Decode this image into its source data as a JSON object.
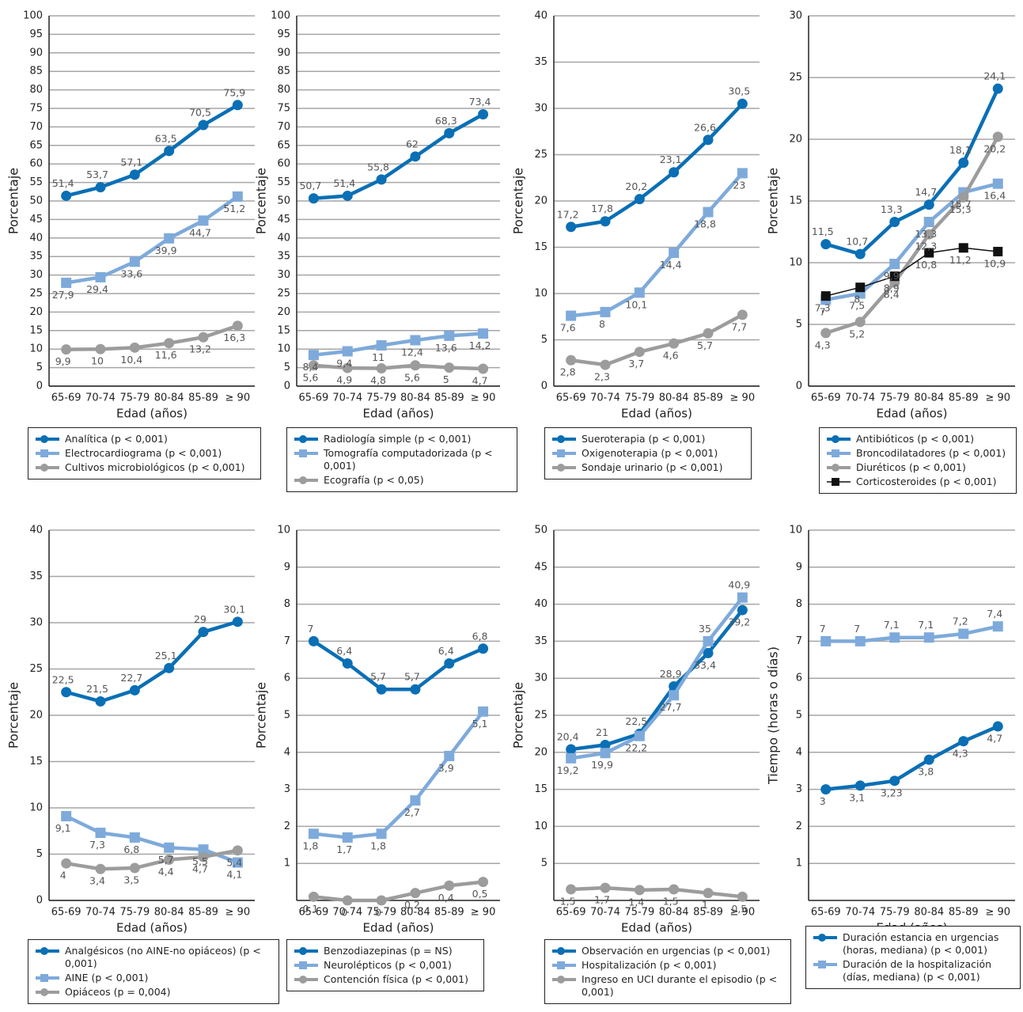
{
  "chart_data": [
    {
      "type": "line",
      "ylabel": "Porcentaje",
      "xlabel": "Edad (años)",
      "categories": [
        "65-69",
        "70-74",
        "75-79",
        "80-84",
        "85-89",
        "≥ 90"
      ],
      "ylim": [
        0,
        100
      ],
      "yticks": [
        0,
        5,
        10,
        15,
        20,
        25,
        30,
        35,
        40,
        45,
        50,
        55,
        60,
        65,
        70,
        75,
        80,
        85,
        90,
        95,
        100
      ],
      "grid": true,
      "series": [
        {
          "name": "Analítica (p < 0,001)",
          "color": "#0a6fb5",
          "marker": "circle",
          "values": [
            51.4,
            53.7,
            57.1,
            63.5,
            70.5,
            75.9
          ],
          "value_labels": [
            "51,4",
            "53,7",
            "57,1",
            "63,5",
            "70,5",
            "75,9"
          ]
        },
        {
          "name": "Electrocardiograma (p < 0,001)",
          "color": "#7eaadb",
          "marker": "square",
          "values": [
            27.9,
            29.4,
            33.6,
            39.9,
            44.7,
            51.2
          ],
          "value_labels": [
            "27,9",
            "29,4",
            "33,6",
            "39,9",
            "44,7",
            "51,2"
          ]
        },
        {
          "name": "Cultivos microbiológicos (p < 0,001)",
          "color": "#9c9c9c",
          "marker": "circle",
          "values": [
            9.9,
            10,
            10.4,
            11.6,
            13.2,
            16.3
          ],
          "value_labels": [
            "9,9",
            "10",
            "10,4",
            "11,6",
            "13,2",
            "16,3"
          ]
        }
      ]
    },
    {
      "type": "line",
      "ylabel": "Porcentaje",
      "xlabel": "Edad (años)",
      "categories": [
        "65-69",
        "70-74",
        "75-79",
        "80-84",
        "85-89",
        "≥ 90"
      ],
      "ylim": [
        0,
        100
      ],
      "yticks": [
        0,
        5,
        10,
        15,
        20,
        25,
        30,
        35,
        40,
        45,
        50,
        55,
        60,
        65,
        70,
        75,
        80,
        85,
        90,
        95,
        100
      ],
      "grid": true,
      "series": [
        {
          "name": "Radiología simple (p < 0,001)",
          "color": "#0a6fb5",
          "marker": "circle",
          "values": [
            50.7,
            51.4,
            55.8,
            62,
            68.3,
            73.4
          ],
          "value_labels": [
            "50,7",
            "51,4",
            "55,8",
            "62",
            "68,3",
            "73,4"
          ]
        },
        {
          "name": "Tomografía computadorizada (p < 0,001)",
          "color": "#7eaadb",
          "marker": "square",
          "values": [
            8.4,
            9.4,
            11,
            12.4,
            13.6,
            14.2
          ],
          "value_labels": [
            "8,4",
            "9,4",
            "11",
            "12,4",
            "13,6",
            "14,2"
          ]
        },
        {
          "name": "Ecografía (p < 0,05)",
          "color": "#9c9c9c",
          "marker": "circle",
          "values": [
            5.6,
            4.9,
            4.8,
            5.6,
            5,
            4.7
          ],
          "value_labels": [
            "5,6",
            "4,9",
            "4,8",
            "5,6",
            "5",
            "4,7"
          ]
        }
      ]
    },
    {
      "type": "line",
      "ylabel": "Porcentaje",
      "xlabel": "Edad (años)",
      "categories": [
        "65-69",
        "70-74",
        "75-79",
        "80-84",
        "85-89",
        "≥ 90"
      ],
      "ylim": [
        0,
        40
      ],
      "yticks": [
        0,
        5,
        10,
        15,
        20,
        25,
        30,
        35,
        40
      ],
      "grid": true,
      "series": [
        {
          "name": "Sueroterapia (p < 0,001)",
          "color": "#0a6fb5",
          "marker": "circle",
          "values": [
            17.2,
            17.8,
            20.2,
            23.1,
            26.6,
            30.5
          ],
          "value_labels": [
            "17,2",
            "17,8",
            "20,2",
            "23,1",
            "26,6",
            "30,5"
          ]
        },
        {
          "name": "Oxigenoterapia (p < 0,001)",
          "color": "#7eaadb",
          "marker": "square",
          "values": [
            7.6,
            8,
            10.1,
            14.4,
            18.8,
            23
          ],
          "value_labels": [
            "7,6",
            "8",
            "10,1",
            "14,4",
            "18,8",
            "23"
          ]
        },
        {
          "name": "Sondaje urinario (p < 0,001)",
          "color": "#9c9c9c",
          "marker": "circle",
          "values": [
            2.8,
            2.3,
            3.7,
            4.6,
            5.7,
            7.7
          ],
          "value_labels": [
            "2,8",
            "2,3",
            "3,7",
            "4,6",
            "5,7",
            "7,7"
          ]
        }
      ]
    },
    {
      "type": "line",
      "ylabel": "Porcentaje",
      "xlabel": "Edad (años)",
      "categories": [
        "65-69",
        "70-74",
        "75-79",
        "80-84",
        "85-89",
        "≥ 90"
      ],
      "ylim": [
        0,
        30
      ],
      "yticks": [
        0,
        5,
        10,
        15,
        20,
        25,
        30
      ],
      "grid": true,
      "series": [
        {
          "name": "Antibióticos (p < 0,001)",
          "color": "#0a6fb5",
          "marker": "circle",
          "values": [
            11.5,
            10.7,
            13.3,
            14.7,
            18.1,
            24.1
          ],
          "value_labels": [
            "11,5",
            "10,7",
            "13,3",
            "14,7",
            "18,1",
            "24,1"
          ]
        },
        {
          "name": "Broncodilatadores (p < 0,001)",
          "color": "#7eaadb",
          "marker": "square",
          "values": [
            7,
            7.5,
            9.9,
            13.3,
            15.7,
            16.4
          ],
          "value_labels": [
            "7",
            "7,5",
            "9,9",
            "13,3",
            "15,7",
            "16,4"
          ]
        },
        {
          "name": "Diuréticos (p < 0,001)",
          "color": "#9c9c9c",
          "marker": "circle",
          "values": [
            4.3,
            5.2,
            8.4,
            12.3,
            15.3,
            20.2
          ],
          "value_labels": [
            "4,3",
            "5,2",
            "8,4",
            "12,3",
            "15,3",
            "20,2"
          ]
        },
        {
          "name": "Corticosteroides (p < 0,001)",
          "color": "#111111",
          "marker": "square",
          "values": [
            7.3,
            8,
            8.9,
            10.8,
            11.2,
            10.9
          ],
          "value_labels": [
            "7,3",
            "8",
            "8,9",
            "10,8",
            "11,2",
            "10,9"
          ]
        }
      ]
    },
    {
      "type": "line",
      "ylabel": "Porcentaje",
      "xlabel": "Edad (años)",
      "categories": [
        "65-69",
        "70-74",
        "75-79",
        "80-84",
        "85-89",
        "≥ 90"
      ],
      "ylim": [
        0,
        40
      ],
      "yticks": [
        0,
        5,
        10,
        15,
        20,
        25,
        30,
        35,
        40
      ],
      "grid": true,
      "series": [
        {
          "name": "Analgésicos (no AINE-no opiáceos) (p < 0,001)",
          "color": "#0a6fb5",
          "marker": "circle",
          "values": [
            22.5,
            21.5,
            22.7,
            25.1,
            29,
            30.1
          ],
          "value_labels": [
            "22,5",
            "21,5",
            "22,7",
            "25,1",
            "29",
            "30,1"
          ]
        },
        {
          "name": "AINE (p < 0,001)",
          "color": "#7eaadb",
          "marker": "square",
          "values": [
            9.1,
            7.3,
            6.8,
            5.7,
            5.5,
            4.1
          ],
          "value_labels": [
            "9,1",
            "7,3",
            "6,8",
            "5,7",
            "5,5",
            "4,1"
          ]
        },
        {
          "name": "Opiáceos (p = 0,004)",
          "color": "#9c9c9c",
          "marker": "circle",
          "values": [
            4,
            3.4,
            3.5,
            4.4,
            4.7,
            5.4
          ],
          "value_labels": [
            "4",
            "3,4",
            "3,5",
            "4,4",
            "4,7",
            "5,4"
          ]
        }
      ]
    },
    {
      "type": "line",
      "ylabel": "Porcentaje",
      "xlabel": "Edad (años)",
      "categories": [
        "65-69",
        "70-74",
        "75-79",
        "80-84",
        "85-89",
        "≥ 90"
      ],
      "ylim": [
        0,
        10
      ],
      "yticks": [
        1,
        2,
        3,
        4,
        5,
        6,
        7,
        8,
        9,
        10
      ],
      "grid": true,
      "series": [
        {
          "name": "Benzodiazepinas (p = NS)",
          "color": "#0a6fb5",
          "marker": "circle",
          "values": [
            7,
            6.4,
            5.7,
            5.7,
            6.4,
            6.8
          ],
          "value_labels": [
            "7",
            "6,4",
            "5,7",
            "5,7",
            "6,4",
            "6,8"
          ]
        },
        {
          "name": "Neurolépticos (p < 0,001)",
          "color": "#7eaadb",
          "marker": "square",
          "values": [
            1.8,
            1.7,
            1.8,
            2.7,
            3.9,
            5.1
          ],
          "value_labels": [
            "1,8",
            "1,7",
            "1,8",
            "2,7",
            "3,9",
            "5,1"
          ]
        },
        {
          "name": "Contención física (p < 0,001)",
          "color": "#9c9c9c",
          "marker": "circle",
          "values": [
            0.1,
            0,
            0,
            0.2,
            0.4,
            0.5
          ],
          "value_labels": [
            "0,1",
            "0",
            "0",
            "0,2",
            "0,4",
            "0,5"
          ]
        }
      ]
    },
    {
      "type": "line",
      "ylabel": "Porcentaje",
      "xlabel": "Edad (años)",
      "categories": [
        "65-69",
        "70-74",
        "75-79",
        "80-84",
        "85-89",
        "≥ 90"
      ],
      "ylim": [
        0,
        50
      ],
      "yticks": [
        5,
        10,
        15,
        20,
        25,
        30,
        35,
        40,
        45,
        50
      ],
      "grid": true,
      "series": [
        {
          "name": "Observación en urgencias (p < 0,001)",
          "color": "#0a6fb5",
          "marker": "circle",
          "values": [
            20.4,
            21,
            22.5,
            28.9,
            33.4,
            39.2
          ],
          "value_labels": [
            "20,4",
            "21",
            "22,5",
            "28,9",
            "33,4",
            "39,2"
          ]
        },
        {
          "name": "Hospitalización (p < 0,001)",
          "color": "#7eaadb",
          "marker": "square",
          "values": [
            19.2,
            19.9,
            22.2,
            27.7,
            35,
            40.9
          ],
          "value_labels": [
            "19,2",
            "19,9",
            "22,2",
            "27,7",
            "35",
            "40,9"
          ]
        },
        {
          "name": "Ingreso en UCI durante el episodio (p < 0,001)",
          "color": "#9c9c9c",
          "marker": "circle",
          "values": [
            1.5,
            1.7,
            1.4,
            1.5,
            1,
            0.5
          ],
          "value_labels": [
            "1,5",
            "1,7",
            "1,4",
            "1,5",
            "1",
            "0,5"
          ]
        }
      ]
    },
    {
      "type": "line",
      "ylabel": "Tiempo (horas o días)",
      "xlabel": "Edad (años)",
      "categories": [
        "65-69",
        "70-74",
        "75-79",
        "80-84",
        "85-89",
        "≥ 90"
      ],
      "ylim": [
        0,
        10
      ],
      "yticks": [
        1,
        2,
        3,
        4,
        5,
        6,
        7,
        8,
        9,
        10
      ],
      "grid": true,
      "series": [
        {
          "name": "Duración estancia en urgencias (horas, mediana) (p < 0,001)",
          "color": "#0a6fb5",
          "marker": "circle",
          "values": [
            3,
            3.1,
            3.23,
            3.8,
            4.3,
            4.7
          ],
          "value_labels": [
            "3",
            "3,1",
            "3,23",
            "3,8",
            "4,3",
            "4,7"
          ]
        },
        {
          "name": "Duración de la hospitalización (días, mediana) (p < 0,001)",
          "color": "#7eaadb",
          "marker": "square",
          "values": [
            7,
            7,
            7.1,
            7.1,
            7.2,
            7.4
          ],
          "value_labels": [
            "7",
            "7",
            "7,1",
            "7,1",
            "7,2",
            "7,4"
          ]
        }
      ]
    }
  ]
}
